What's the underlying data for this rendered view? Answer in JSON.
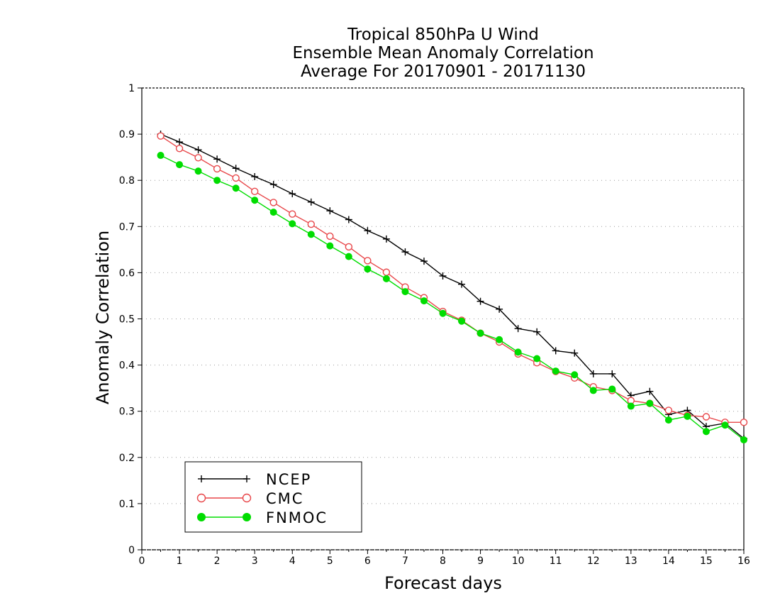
{
  "chart_data": {
    "type": "line",
    "title_lines": [
      "Tropical 850hPa U Wind",
      "Ensemble Mean Anomaly Correlation",
      "Average For 20170901 - 20171130"
    ],
    "xlabel": "Forecast days",
    "ylabel": "Anomaly Correlation",
    "xlim": [
      0,
      16
    ],
    "ylim": [
      0,
      1
    ],
    "xticks": [
      0,
      1,
      2,
      3,
      4,
      5,
      6,
      7,
      8,
      9,
      10,
      11,
      12,
      13,
      14,
      15,
      16
    ],
    "yticks": [
      0,
      0.1,
      0.2,
      0.3,
      0.4,
      0.5,
      0.6,
      0.7,
      0.8,
      0.9,
      1
    ],
    "ytick_labels": [
      "0",
      "0.1",
      "0.2",
      "0.3",
      "0.4",
      "0.5",
      "0.6",
      "0.7",
      "0.8",
      "0.9",
      "1"
    ],
    "grid": "horizontal dotted",
    "legend_position": "bottom-left",
    "x": [
      0.5,
      1,
      1.5,
      2,
      2.5,
      3,
      3.5,
      4,
      4.5,
      5,
      5.5,
      6,
      6.5,
      7,
      7.5,
      8,
      8.5,
      9,
      9.5,
      10,
      10.5,
      11,
      11.5,
      12,
      12.5,
      13,
      13.5,
      14,
      14.5,
      15,
      15.5,
      16
    ],
    "series": [
      {
        "name": "NCEP",
        "color": "#000000",
        "marker": "plus",
        "values": [
          0.9,
          0.883,
          0.866,
          0.846,
          0.826,
          0.808,
          0.791,
          0.771,
          0.753,
          0.734,
          0.715,
          0.691,
          0.673,
          0.645,
          0.625,
          0.593,
          0.575,
          0.538,
          0.521,
          0.479,
          0.472,
          0.431,
          0.426,
          0.381,
          0.381,
          0.334,
          0.343,
          0.293,
          0.302,
          0.267,
          0.274,
          0.241
        ]
      },
      {
        "name": "CMC",
        "color": "#e8474a",
        "marker": "open-circle",
        "values": [
          0.896,
          0.869,
          0.849,
          0.825,
          0.805,
          0.776,
          0.752,
          0.727,
          0.705,
          0.679,
          0.656,
          0.626,
          0.601,
          0.569,
          0.546,
          0.516,
          0.497,
          0.469,
          0.45,
          0.424,
          0.405,
          0.386,
          0.372,
          0.353,
          0.345,
          0.323,
          0.317,
          0.302,
          0.291,
          0.288,
          0.276,
          0.276
        ]
      },
      {
        "name": "FNMOC",
        "color": "#00dd00",
        "marker": "filled-circle",
        "values": [
          0.854,
          0.834,
          0.82,
          0.8,
          0.783,
          0.757,
          0.731,
          0.706,
          0.683,
          0.658,
          0.635,
          0.608,
          0.587,
          0.559,
          0.539,
          0.512,
          0.495,
          0.469,
          0.455,
          0.428,
          0.414,
          0.387,
          0.379,
          0.345,
          0.348,
          0.311,
          0.317,
          0.281,
          0.289,
          0.256,
          0.27,
          0.238
        ]
      }
    ]
  }
}
